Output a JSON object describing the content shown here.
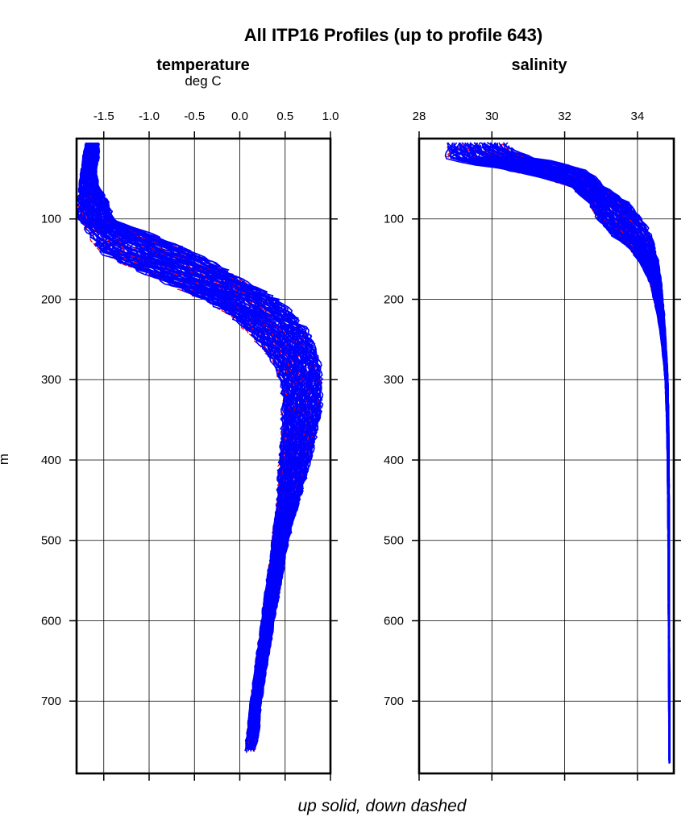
{
  "chart_data": [
    {
      "type": "line",
      "title": "All ITP16 Profiles (up to profile 643)",
      "panel_title": "temperature",
      "xlabel": "deg C",
      "ylabel": "m",
      "x_axis_position": "top",
      "y_inverted": true,
      "xlim": [
        -1.8,
        1.0
      ],
      "ylim": [
        0,
        790
      ],
      "xticks": [
        -1.5,
        -1.0,
        -0.5,
        0.0,
        0.5,
        1.0
      ],
      "xtick_labels": [
        "-1.5",
        "-1.0",
        "-0.5",
        "0.0",
        "0.5",
        "1.0"
      ],
      "yticks": [
        100,
        200,
        300,
        400,
        500,
        600,
        700
      ],
      "ytick_labels": [
        "100",
        "200",
        "300",
        "400",
        "500",
        "600",
        "700"
      ],
      "grid": true,
      "envelope": {
        "depth": [
          5,
          20,
          40,
          60,
          80,
          100,
          110,
          120,
          130,
          140,
          150,
          160,
          170,
          180,
          190,
          200,
          220,
          240,
          260,
          280,
          300,
          320,
          340,
          360,
          380,
          400,
          420,
          440,
          460,
          480,
          500,
          520,
          550,
          600,
          650,
          700,
          750,
          765
        ],
        "min": [
          -1.7,
          -1.72,
          -1.75,
          -1.77,
          -1.78,
          -1.78,
          -1.7,
          -1.65,
          -1.6,
          -1.55,
          -1.4,
          -1.2,
          -1.0,
          -0.8,
          -0.6,
          -0.4,
          -0.1,
          0.1,
          0.25,
          0.38,
          0.45,
          0.48,
          0.48,
          0.47,
          0.45,
          0.44,
          0.43,
          0.42,
          0.41,
          0.38,
          0.36,
          0.34,
          0.3,
          0.24,
          0.18,
          0.12,
          0.07,
          0.05
        ],
        "max": [
          -1.55,
          -1.55,
          -1.58,
          -1.56,
          -1.45,
          -1.4,
          -1.2,
          -0.95,
          -0.75,
          -0.55,
          -0.35,
          -0.2,
          -0.05,
          0.1,
          0.25,
          0.42,
          0.6,
          0.75,
          0.82,
          0.88,
          0.9,
          0.9,
          0.89,
          0.86,
          0.82,
          0.78,
          0.73,
          0.68,
          0.63,
          0.58,
          0.54,
          0.5,
          0.46,
          0.38,
          0.31,
          0.24,
          0.2,
          0.18
        ]
      },
      "series": [
        {
          "style": "up solid",
          "color": "#0000ff"
        },
        {
          "style": "down dashed",
          "color": "#ff0000"
        }
      ]
    },
    {
      "type": "line",
      "panel_title": "salinity",
      "x_axis_position": "top",
      "y_inverted": true,
      "xlim": [
        28,
        35
      ],
      "ylim": [
        0,
        790
      ],
      "xticks": [
        28,
        30,
        32,
        34
      ],
      "xtick_labels": [
        "28",
        "30",
        "32",
        "34"
      ],
      "yticks": [
        100,
        200,
        300,
        400,
        500,
        600,
        700
      ],
      "ytick_labels": [
        "100",
        "200",
        "300",
        "400",
        "500",
        "600",
        "700"
      ],
      "grid": true,
      "envelope": {
        "depth": [
          5,
          15,
          25,
          30,
          40,
          50,
          60,
          70,
          80,
          90,
          100,
          110,
          120,
          130,
          140,
          150,
          160,
          180,
          200,
          220,
          250,
          280,
          300,
          350,
          400,
          500,
          600,
          700,
          780
        ],
        "min": [
          28.8,
          28.8,
          28.8,
          29.3,
          30.5,
          31.5,
          32.2,
          32.4,
          32.7,
          32.8,
          32.9,
          33.1,
          33.3,
          33.6,
          33.85,
          34.0,
          34.15,
          34.35,
          34.45,
          34.55,
          34.65,
          34.72,
          34.76,
          34.8,
          34.82,
          34.84,
          34.85,
          34.86,
          34.87
        ],
        "max": [
          30.4,
          30.6,
          31.2,
          32.0,
          32.6,
          32.9,
          33.1,
          33.4,
          33.75,
          33.95,
          34.1,
          34.25,
          34.35,
          34.45,
          34.5,
          34.56,
          34.6,
          34.66,
          34.7,
          34.74,
          34.78,
          34.82,
          34.84,
          34.86,
          34.87,
          34.88,
          34.88,
          34.89,
          34.89
        ]
      },
      "series": [
        {
          "style": "up solid",
          "color": "#0000ff"
        },
        {
          "style": "down dashed",
          "color": "#ff0000"
        }
      ]
    }
  ],
  "footer": "up solid, down dashed",
  "colors": {
    "up": "#0000ff",
    "down": "#ff0000",
    "axis": "#000000",
    "grid": "#000000"
  }
}
